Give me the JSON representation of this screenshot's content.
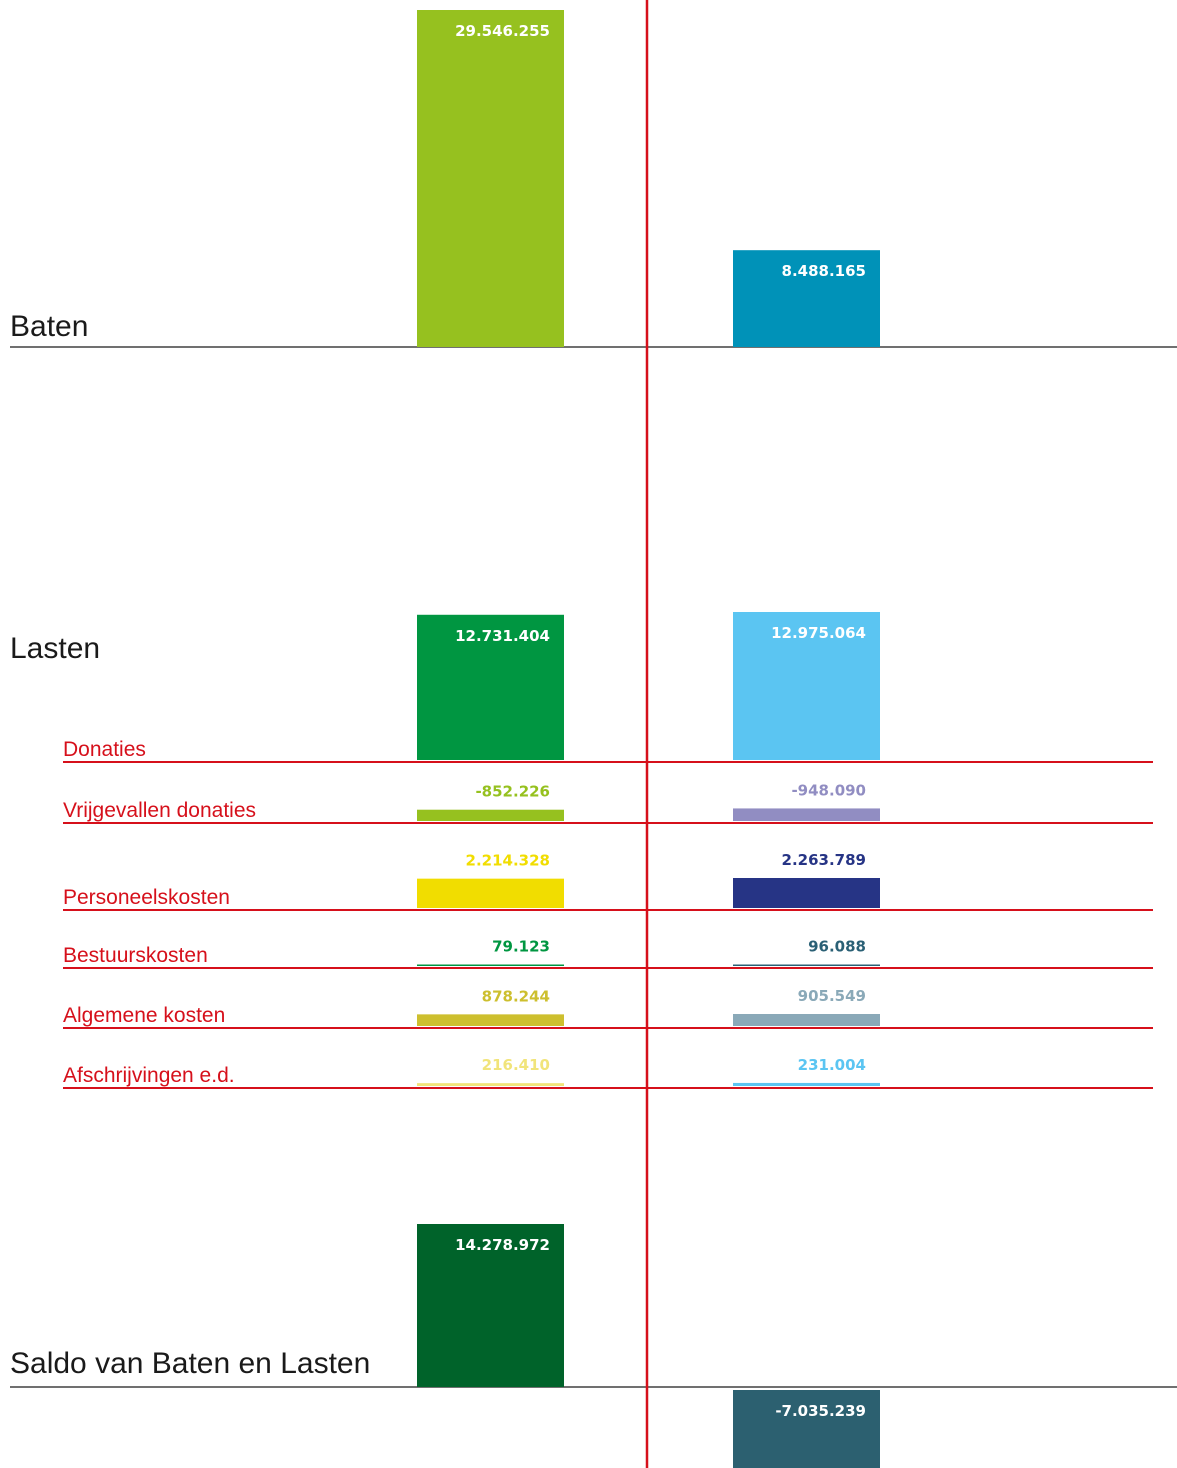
{
  "chart_data": {
    "type": "bar",
    "series_columns": [
      "A",
      "B"
    ],
    "sections": [
      {
        "id": "baten",
        "label": "Baten",
        "bars": [
          {
            "value": 29546255,
            "label": "29.546.255",
            "color": "#96c11f",
            "text_color": "#ffffff"
          },
          {
            "value": 8488165,
            "label": "8.488.165",
            "color": "#0092b8",
            "text_color": "#ffffff"
          }
        ]
      },
      {
        "id": "lasten",
        "label": "Lasten",
        "total_bars": [
          {
            "value": 12731404,
            "label": "12.731.404",
            "color": "#009641",
            "text_color": "#ffffff"
          },
          {
            "value": 12975064,
            "label": "12.975.064",
            "color": "#5bc5f2",
            "text_color": "#ffffff"
          }
        ],
        "rows": [
          {
            "label": "Donaties",
            "values": [
              null,
              null
            ]
          },
          {
            "label": "Vrijgevallen donaties",
            "values": [
              -852226,
              -948090
            ],
            "value_labels": [
              "-852.226",
              "-948.090"
            ],
            "colors": [
              "#96c11f",
              "#918dc2"
            ],
            "text_colors": [
              "#96c11f",
              "#918dc2"
            ]
          },
          {
            "label": "Personeelskosten",
            "values": [
              2214328,
              2263789
            ],
            "value_labels": [
              "2.214.328",
              "2.263.789"
            ],
            "colors": [
              "#f1dd00",
              "#263485"
            ],
            "text_colors": [
              "#f1dd00",
              "#263485"
            ]
          },
          {
            "label": "Bestuurskosten",
            "values": [
              79123,
              96088
            ],
            "value_labels": [
              "79.123",
              "96.088"
            ],
            "colors": [
              "#009641",
              "#2a6075"
            ],
            "text_colors": [
              "#009641",
              "#2a6075"
            ]
          },
          {
            "label": "Algemene kosten",
            "values": [
              878244,
              905549
            ],
            "value_labels": [
              "878.244",
              "905.549"
            ],
            "colors": [
              "#cdbf2e",
              "#8aa9b8"
            ],
            "text_colors": [
              "#cdbf2e",
              "#8aa9b8"
            ]
          },
          {
            "label": "Afschrijvingen e.d.",
            "values": [
              216410,
              231004
            ],
            "value_labels": [
              "216.410",
              "231.004"
            ],
            "colors": [
              "#f1e47a",
              "#5bc5f2"
            ],
            "text_colors": [
              "#f1e47a",
              "#5bc5f2"
            ]
          }
        ]
      },
      {
        "id": "saldo",
        "label": "Saldo van Baten en Lasten",
        "bars": [
          {
            "value": 14278972,
            "label": "14.278.972",
            "color": "#00632a",
            "text_color": "#ffffff"
          },
          {
            "value": -7035239,
            "label": "-7.035.239",
            "color": "#2c6070",
            "text_color": "#ffffff"
          }
        ]
      }
    ],
    "colors": {
      "divider": "#d6101b",
      "baseline": "#1a1a1a"
    }
  }
}
